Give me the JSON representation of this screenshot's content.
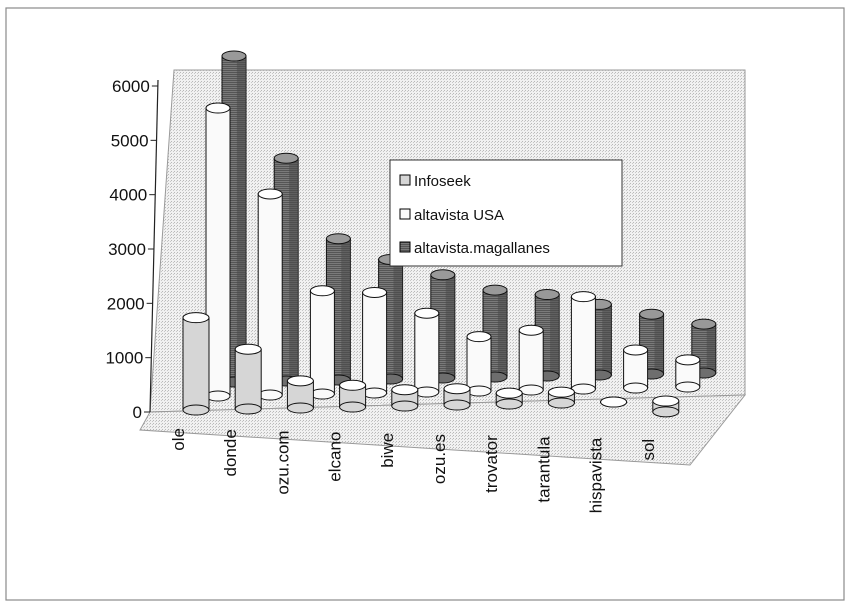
{
  "chart_data": {
    "type": "bar",
    "title": "",
    "xlabel": "",
    "ylabel": "",
    "ylim": [
      0,
      6000
    ],
    "yticks": [
      0,
      1000,
      2000,
      3000,
      4000,
      5000,
      6000
    ],
    "grid": false,
    "legend_position": "right",
    "categories": [
      "ole",
      "donde",
      "ozu.com",
      "elcano",
      "biwe",
      "ozu.es",
      "trovator",
      "tarantula",
      "hispavista",
      "sol"
    ],
    "series": [
      {
        "name": "Infoseek",
        "values": [
          1700,
          1100,
          500,
          400,
          300,
          300,
          200,
          200,
          0,
          -200
        ]
      },
      {
        "name": "altavista USA",
        "values": [
          5300,
          3700,
          1900,
          1850,
          1450,
          1000,
          1100,
          1700,
          700,
          500
        ]
      },
      {
        "name": "altavista.magallanes",
        "values": [
          6000,
          4100,
          2600,
          2200,
          1900,
          1600,
          1500,
          1300,
          1100,
          900
        ]
      }
    ],
    "colors": {
      "Infoseek": "#d6d6d6",
      "altavista USA": "#fafafa",
      "altavista.magallanes": "#7a7a7a"
    }
  }
}
